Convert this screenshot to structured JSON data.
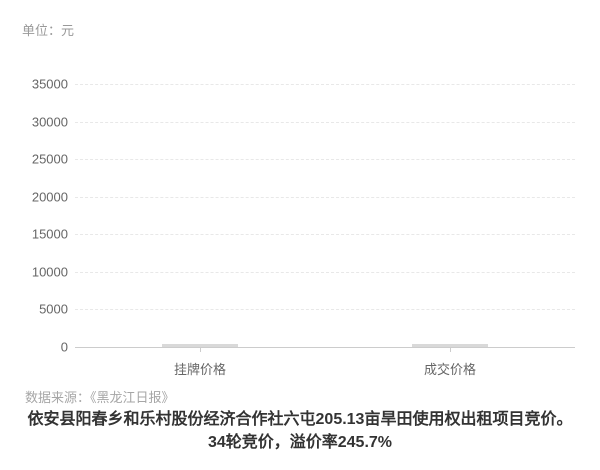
{
  "unit_label": "单位：元",
  "source_label": "数据来源：《黑龙江日报》",
  "caption": {
    "line1": "依安县阳春乡和乐村股份经济合作社六屯205.13亩旱田使用权出租项目竞价。",
    "line2": "34轮竞价，溢价率245.7%"
  },
  "chart_data": {
    "type": "bar",
    "title": "",
    "xlabel": "",
    "ylabel": "单位：元",
    "categories": [
      "挂牌价格",
      "成交价格"
    ],
    "values": [
      null,
      null
    ],
    "ylim": [
      0,
      35000
    ],
    "yticks": [
      0,
      5000,
      10000,
      15000,
      20000,
      25000,
      30000,
      35000
    ],
    "grid": "horizontal dashed gridlines, solid baseline at 0",
    "legend": "none",
    "note": "bars are rendered at zero height (thin gray slivers on the baseline); no data values are visible in the pixels"
  },
  "colors": {
    "background": "#ffffff",
    "unit_label": "#999999",
    "axis_label": "#666666",
    "gridline": "#e8e8e8",
    "axis_line": "#cccccc",
    "bar_placeholder": "#d9d9d9",
    "source_label": "#a6a6a6",
    "caption": "#333333"
  }
}
